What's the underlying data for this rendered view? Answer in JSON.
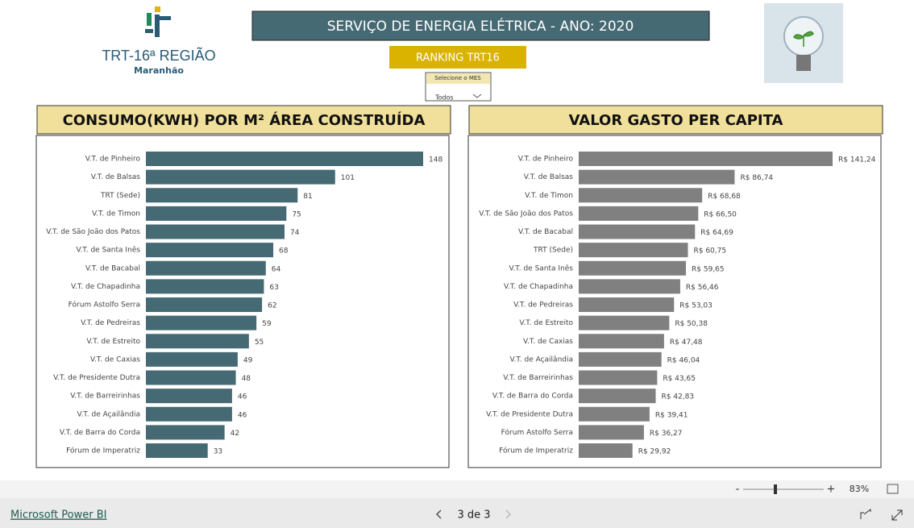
{
  "header": {
    "logo_title": "TRT-16ª REGIÃO",
    "logo_subtitle": "Maranhão",
    "title": "SERVIÇO DE ENERGIA ELÉTRICA - ANO: 2020",
    "button": "RANKING TRT16",
    "slicer": {
      "label": "Selecione o MES",
      "value": "Todos"
    }
  },
  "chart_data": [
    {
      "type": "bar",
      "orientation": "horizontal",
      "title": "CONSUMO(KWH) POR M² ÁREA CONSTRUÍDA",
      "color": "#456a74",
      "categories": [
        "V.T. de Pinheiro",
        "V.T. de Balsas",
        "TRT (Sede)",
        "V.T. de Timon",
        "V.T. de São João dos Patos",
        "V.T. de Santa Inês",
        "V.T. de Bacabal",
        "V.T. de Chapadinha",
        "Fórum Astolfo Serra",
        "V.T. de Pedreiras",
        "V.T. de Estreito",
        "V.T. de Caxias",
        "V.T. de Presidente Dutra",
        "V.T. de Barreirinhas",
        "V.T. de Açailândia",
        "V.T. de Barra do Corda",
        "Fórum de Imperatriz"
      ],
      "values": [
        148,
        101,
        81,
        75,
        74,
        68,
        64,
        63,
        62,
        59,
        55,
        49,
        48,
        46,
        46,
        42,
        33
      ]
    },
    {
      "type": "bar",
      "orientation": "horizontal",
      "title": "VALOR GASTO PER CAPITA",
      "color": "#808080",
      "categories": [
        "V.T. de Pinheiro",
        "V.T. de Balsas",
        "V.T. de Timon",
        "V.T. de São João dos Patos",
        "V.T. de Bacabal",
        "TRT (Sede)",
        "V.T. de Santa Inês",
        "V.T. de Chapadinha",
        "V.T. de Pedreiras",
        "V.T. de Estreito",
        "V.T. de Caxias",
        "V.T. de Açailândia",
        "V.T. de Barreirinhas",
        "V.T. de Barra do Corda",
        "V.T. de Presidente Dutra",
        "Fórum Astolfo Serra",
        "Fórum de Imperatriz"
      ],
      "values": [
        141.24,
        86.74,
        68.68,
        66.5,
        64.69,
        60.75,
        59.65,
        56.46,
        53.03,
        50.38,
        47.48,
        46.04,
        43.65,
        42.83,
        39.41,
        36.27,
        29.92
      ],
      "value_labels": [
        "R$ 141,24",
        "R$ 86,74",
        "R$ 68,68",
        "R$ 66,50",
        "R$ 64,69",
        "R$ 60,75",
        "R$ 59,65",
        "R$ 56,46",
        "R$ 53,03",
        "R$ 50,38",
        "R$ 47,48",
        "R$ 46,04",
        "R$ 43,65",
        "R$ 42,83",
        "R$ 39,41",
        "R$ 36,27",
        "R$ 29,92"
      ]
    }
  ],
  "footer": {
    "zoom": "83%",
    "brand": "Microsoft Power BI",
    "page": "3 de 3"
  }
}
